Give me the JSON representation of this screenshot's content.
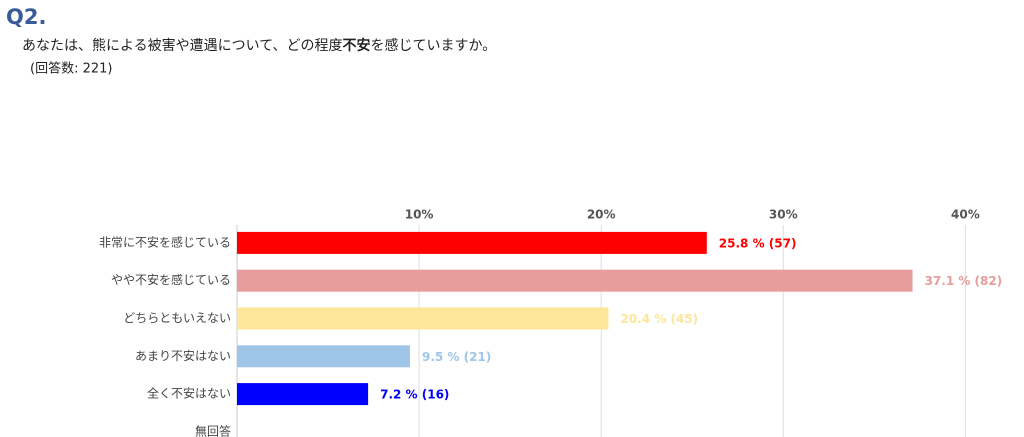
{
  "chart_data": {
    "type": "barh",
    "title": "Q2.",
    "question": [
      "あなたは、熊による被害や遭遇について、どの程度",
      "不安",
      "を感じていますか。"
    ],
    "subtitle": "(回答数: 221)",
    "categories": [
      "非常に不安を感じている",
      "やや不安を感じている",
      "どちらともいえない",
      "あまり不安はない",
      "全く不安はない",
      "無回答"
    ],
    "values": [
      25.8,
      37.1,
      20.4,
      9.5,
      7.2,
      null
    ],
    "value_labels": [
      "25.8 % (57)",
      "37.1 % (82)",
      "20.4 % (45)",
      "9.5 % (21)",
      "7.2 % (16)",
      null
    ],
    "colors": [
      "#ff0000",
      "#e89c9c",
      "#fde59a",
      "#9fc5e8",
      "#0000ff",
      "#cccccc"
    ],
    "xlim": [
      0,
      43
    ],
    "xticks": [
      {
        "value": 10,
        "label": "10%"
      },
      {
        "value": 20,
        "label": "20%"
      },
      {
        "value": 30,
        "label": "30%"
      },
      {
        "value": 40,
        "label": "40%"
      }
    ],
    "grid": true
  }
}
